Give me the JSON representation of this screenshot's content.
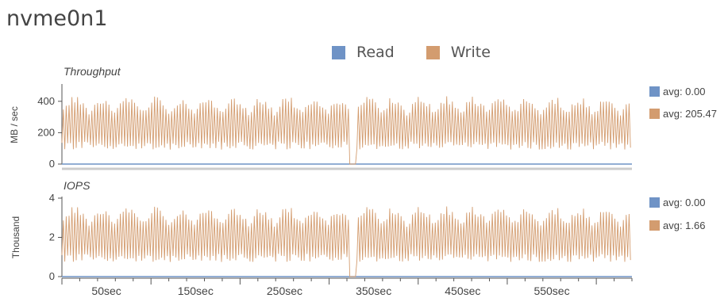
{
  "title": "nvme0n1",
  "colors": {
    "read": "#6f93c6",
    "write": "#d39c6f",
    "axis": "#555555",
    "divider": "#cccccc"
  },
  "legend": [
    {
      "name": "Read",
      "color": "#6f93c6"
    },
    {
      "name": "Write",
      "color": "#d39c6f"
    }
  ],
  "chart_data": [
    {
      "type": "line",
      "title": "Throughput",
      "ylabel": "MB / sec",
      "xlabel": "",
      "ylim": [
        0,
        500
      ],
      "yticks": [
        0,
        200,
        400
      ],
      "xlim": [
        0,
        640
      ],
      "xtick_labels": [
        "50sec",
        "150sec",
        "250sec",
        "350sec",
        "450sec",
        "550sec"
      ],
      "xtick_values": [
        50,
        150,
        250,
        350,
        450,
        550
      ],
      "series": [
        {
          "name": "Read",
          "avg_label": "avg: 0.00",
          "mean": 0,
          "amp": 0
        },
        {
          "name": "Write",
          "avg_label": "avg: 205.47",
          "mean": 205.47,
          "amp": 230
        }
      ],
      "gaps": [
        [
          323,
          330
        ]
      ],
      "grid": false
    },
    {
      "type": "line",
      "title": "IOPS",
      "ylabel": "Thousand",
      "xlabel": "",
      "ylim": [
        0,
        4
      ],
      "yticks": [
        0,
        2,
        4
      ],
      "xlim": [
        0,
        640
      ],
      "xtick_labels": [
        "50sec",
        "150sec",
        "250sec",
        "350sec",
        "450sec",
        "550sec"
      ],
      "xtick_values": [
        50,
        150,
        250,
        350,
        450,
        550
      ],
      "series": [
        {
          "name": "Read",
          "avg_label": "avg: 0.00",
          "mean": 0,
          "amp": 0
        },
        {
          "name": "Write",
          "avg_label": "avg: 1.66",
          "mean": 1.66,
          "amp": 1.95
        }
      ],
      "gaps": [
        [
          323,
          330
        ]
      ],
      "grid": false
    }
  ]
}
